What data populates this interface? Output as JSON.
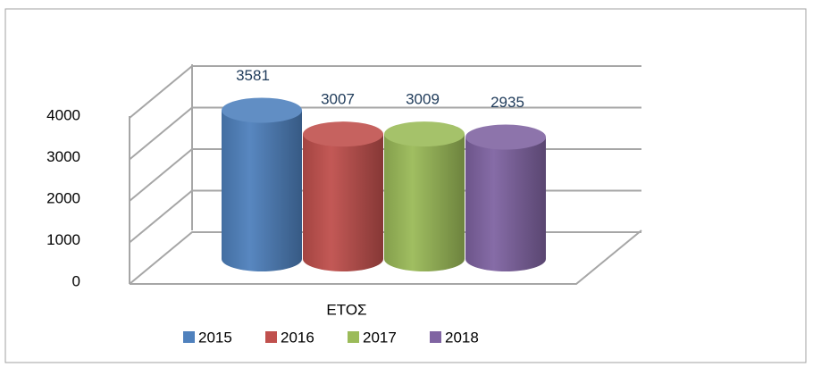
{
  "chart_data": {
    "type": "bar",
    "categories": [
      "ΕΤΟΣ"
    ],
    "series": [
      {
        "name": "2015",
        "color": "#4f81bd",
        "values": [
          3581
        ]
      },
      {
        "name": "2016",
        "color": "#c0504d",
        "values": [
          3007
        ]
      },
      {
        "name": "2017",
        "color": "#9bbb59",
        "values": [
          3009
        ]
      },
      {
        "name": "2018",
        "color": "#8064a2",
        "values": [
          2935
        ]
      }
    ],
    "ylim": [
      0,
      4000
    ],
    "yticks": [
      0,
      1000,
      2000,
      3000,
      4000
    ],
    "grid": true,
    "legend": "bottom"
  }
}
